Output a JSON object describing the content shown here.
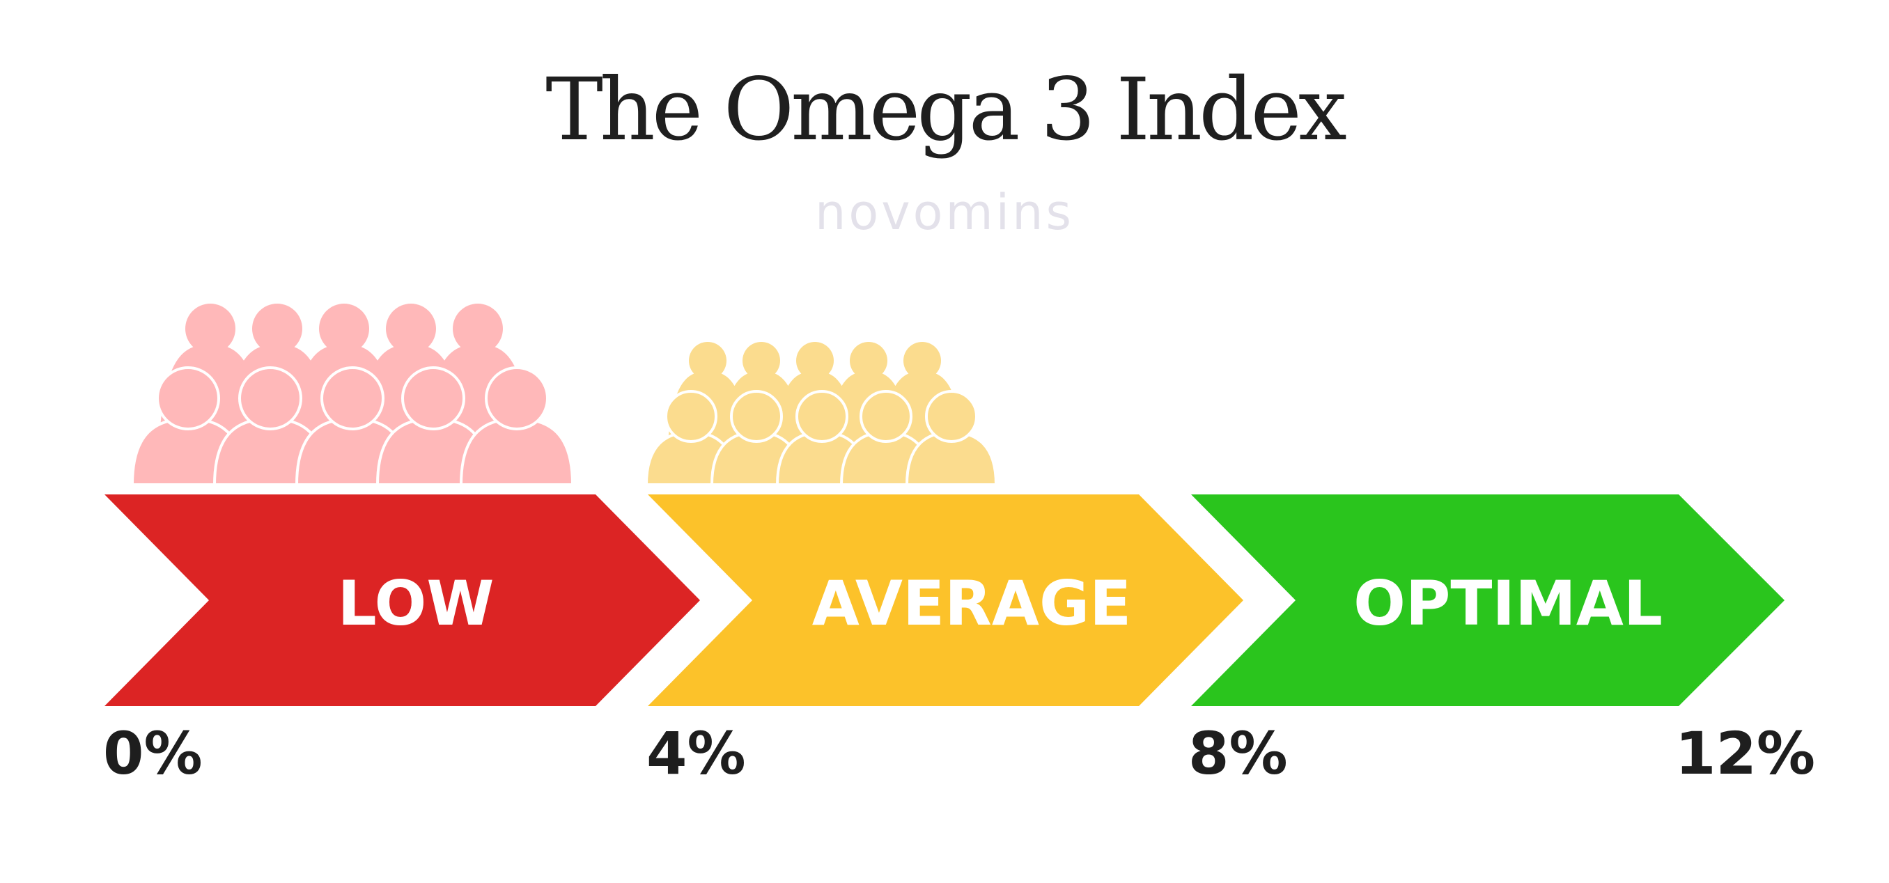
{
  "title": "The Omega 3 Index",
  "brand": "novomins",
  "colors": {
    "low": "#dc2424",
    "average": "#fcc22a",
    "optimal": "#2ac51d",
    "low_people": "#ffb8b9",
    "average_people": "#fbdc8e",
    "brand": "#e3e1ea",
    "text": "#1e1e1e"
  },
  "segments": [
    {
      "label": "LOW",
      "color": "#dc2424",
      "people_color": "#ffb8b9",
      "people_size": "large"
    },
    {
      "label": "AVERAGE",
      "color": "#fcc22a",
      "people_color": "#fbdc8e",
      "people_size": "small"
    },
    {
      "label": "OPTIMAL",
      "color": "#2ac51d"
    }
  ],
  "ticks": [
    "0%",
    "4%",
    "8%",
    "12%"
  ]
}
